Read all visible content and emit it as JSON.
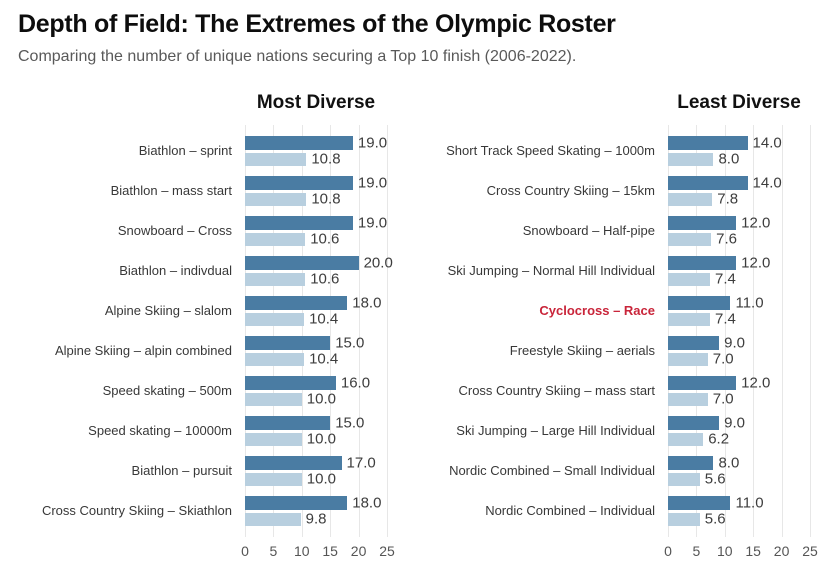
{
  "header": {
    "title": "Depth of Field: The Extremes of the Olympic Roster",
    "subtitle": "Comparing the number of unique nations securing a Top 10 finish (2006-2022)."
  },
  "colors": {
    "primary_bar": "#4a7ca3",
    "secondary_bar": "#b8cfdf",
    "highlight_label": "#c9253a",
    "gridline": "#e7e7e7"
  },
  "chart_data": [
    {
      "type": "bar",
      "orientation": "horizontal",
      "panel_title": "Most Diverse",
      "xlim": [
        0,
        25
      ],
      "xticks": [
        0,
        5,
        10,
        15,
        20,
        25
      ],
      "grid": true,
      "categories": [
        "Biathlon – sprint",
        "Biathlon – mass start",
        "Snowboard – Cross",
        "Biathlon – indivdual",
        "Alpine Skiing – slalom",
        "Alpine Skiing – alpin combined",
        "Speed skating – 500m",
        "Speed skating – 10000m",
        "Biathlon – pursuit",
        "Cross Country Skiing – Skiathlon"
      ],
      "series": [
        {
          "color": "#4a7ca3",
          "values": [
            19,
            19,
            19,
            20,
            18,
            15,
            16,
            15,
            17,
            18
          ],
          "labels": [
            "19.0",
            "19.0",
            "19.0",
            "20.0",
            "18.0",
            "15.0",
            "16.0",
            "15.0",
            "17.0",
            "18.0"
          ]
        },
        {
          "color": "#b8cfdf",
          "values": [
            10.8,
            10.8,
            10.6,
            10.6,
            10.4,
            10.4,
            10.0,
            10.0,
            10.0,
            9.8
          ],
          "labels": [
            "10.8",
            "10.8",
            "10.6",
            "10.6",
            "10.4",
            "10.4",
            "10.0",
            "10.0",
            "10.0",
            "9.8"
          ]
        }
      ],
      "highlight_index": null
    },
    {
      "type": "bar",
      "orientation": "horizontal",
      "panel_title": "Least Diverse",
      "xlim": [
        0,
        25
      ],
      "xticks": [
        0,
        5,
        10,
        15,
        20,
        25
      ],
      "grid": true,
      "categories": [
        "Short Track Speed Skating – 1000m",
        "Cross Country Skiing – 15km",
        "Snowboard – Half-pipe",
        "Ski Jumping – Normal Hill Individual",
        "Cyclocross – Race",
        "Freestyle Skiing – aerials",
        "Cross Country Skiing – mass start",
        "Ski Jumping – Large Hill Individual",
        "Nordic Combined – Small Individual",
        "Nordic Combined – Individual"
      ],
      "series": [
        {
          "color": "#4a7ca3",
          "values": [
            14,
            14,
            12,
            12,
            11,
            9,
            12,
            9,
            8,
            11
          ],
          "labels": [
            "14.0",
            "14.0",
            "12.0",
            "12.0",
            "11.0",
            "9.0",
            "12.0",
            "9.0",
            "8.0",
            "11.0"
          ]
        },
        {
          "color": "#b8cfdf",
          "values": [
            8.0,
            7.8,
            7.6,
            7.4,
            7.4,
            7.0,
            7.0,
            6.2,
            5.6,
            5.6
          ],
          "labels": [
            "8.0",
            "7.8",
            "7.6",
            "7.4",
            "7.4",
            "7.0",
            "7.0",
            "6.2",
            "5.6",
            "5.6"
          ]
        }
      ],
      "highlight_index": 4
    }
  ]
}
